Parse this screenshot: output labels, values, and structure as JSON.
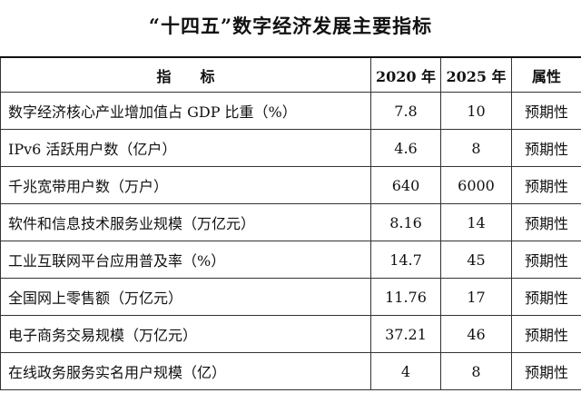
{
  "header": {
    "title": "“十四五”数字经济发展主要指标"
  },
  "table": {
    "columns": [
      "指　　标",
      "2020 年",
      "2025 年",
      "属性"
    ],
    "rows": [
      [
        "数字经济核心产业增加值占 GDP 比重（%）",
        "7.8",
        "10",
        "预期性"
      ],
      [
        "IPv6 活跃用户数（亿户）",
        "4.6",
        "8",
        "预期性"
      ],
      [
        "千兆宽带用户数（万户）",
        "640",
        "6000",
        "预期性"
      ],
      [
        "软件和信息技术服务业规模（万亿元）",
        "8.16",
        "14",
        "预期性"
      ],
      [
        "工业互联网平台应用普及率（%）",
        "14.7",
        "45",
        "预期性"
      ],
      [
        "全国网上零售额（万亿元）",
        "11.76",
        "17",
        "预期性"
      ],
      [
        "电子商务交易规模（万亿元）",
        "37.21",
        "46",
        "预期性"
      ],
      [
        "在线政务服务实名用户规模（亿）",
        "4",
        "8",
        "预期性"
      ]
    ]
  }
}
